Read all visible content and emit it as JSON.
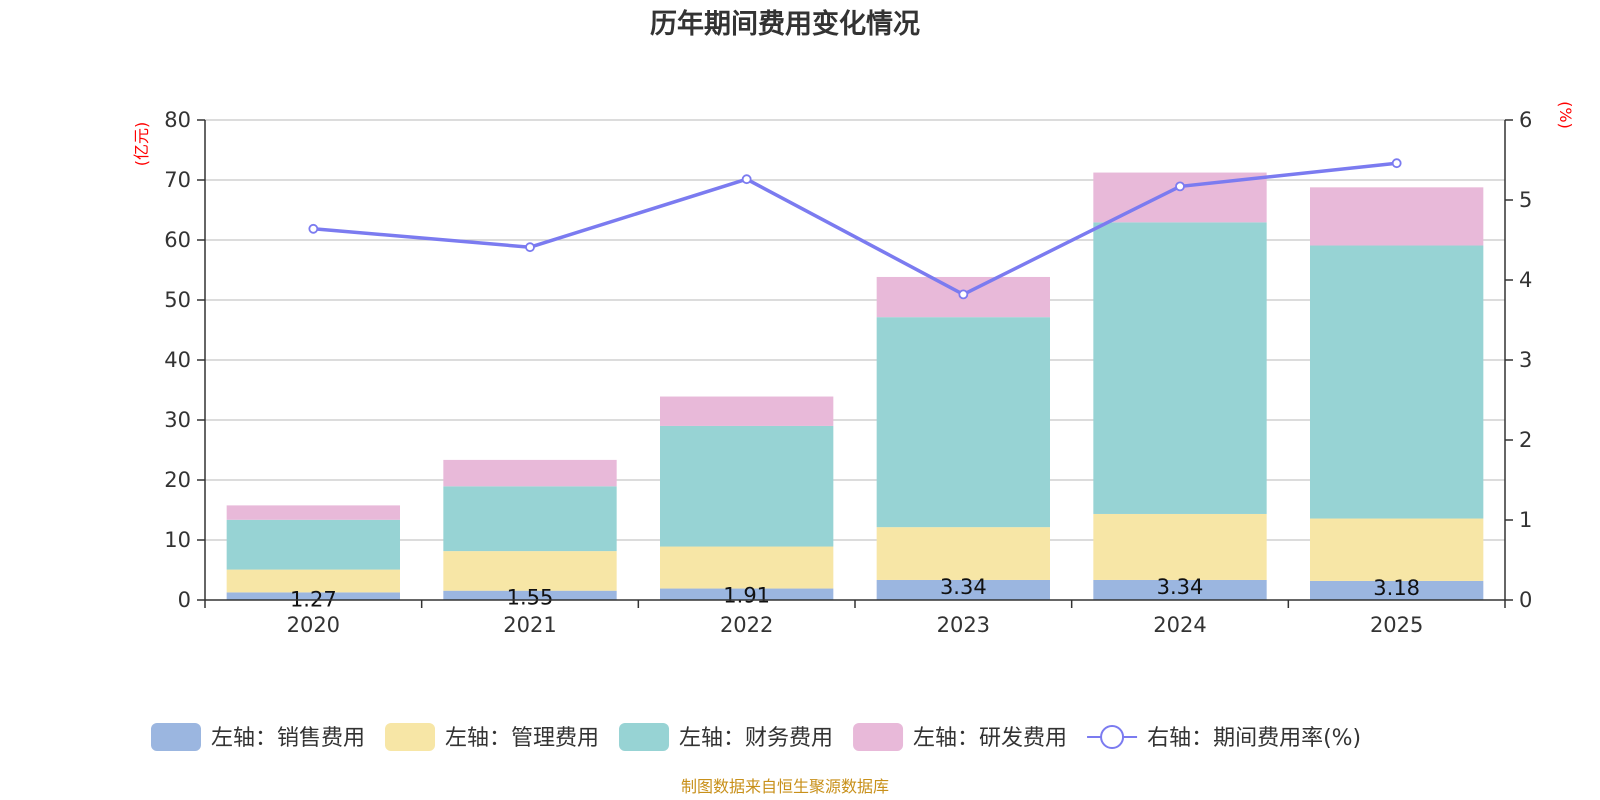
{
  "chart_data": {
    "type": "bar",
    "title": "历年期间费用变化情况",
    "categories": [
      "2020",
      "2021",
      "2022",
      "2023",
      "2024",
      "2025"
    ],
    "left_axis": {
      "unit": "(亿元)",
      "ylim": [
        0,
        80
      ],
      "ticks": [
        "0",
        "10",
        "20",
        "30",
        "40",
        "50",
        "60",
        "70",
        "80"
      ]
    },
    "right_axis": {
      "unit": "(%)",
      "ylim": [
        0,
        6
      ],
      "ticks": [
        "0",
        "1",
        "2",
        "3",
        "4",
        "5",
        "6"
      ]
    },
    "series": [
      {
        "name": "左轴：销售费用",
        "kind": "bar",
        "axis": "left",
        "color": "#9bb6e0",
        "values": [
          1.27,
          1.55,
          1.91,
          3.34,
          3.34,
          3.18
        ],
        "labels": [
          "1.27",
          "1.55",
          "1.91",
          "3.34",
          "3.34",
          "3.18"
        ]
      },
      {
        "name": "左轴：管理费用",
        "kind": "bar",
        "axis": "left",
        "color": "#f7e6a6",
        "values": [
          3.8,
          6.6,
          7.0,
          8.8,
          11.0,
          10.4
        ]
      },
      {
        "name": "左轴：财务费用",
        "kind": "bar",
        "axis": "left",
        "color": "#97d3d4",
        "values": [
          8.3,
          10.8,
          20.1,
          35.0,
          48.6,
          45.5
        ]
      },
      {
        "name": "左轴：研发费用",
        "kind": "bar",
        "axis": "left",
        "color": "#e8b9d9",
        "values": [
          2.4,
          4.4,
          4.9,
          6.7,
          8.3,
          9.7
        ]
      },
      {
        "name": "右轴：期间费用率(%)",
        "kind": "line",
        "axis": "right",
        "color": "#7b7bf0",
        "values": [
          4.64,
          4.41,
          5.26,
          3.82,
          5.17,
          5.46
        ]
      }
    ],
    "legend_position": "bottom",
    "grid": true
  },
  "source_note": "制图数据来自恒生聚源数据库"
}
